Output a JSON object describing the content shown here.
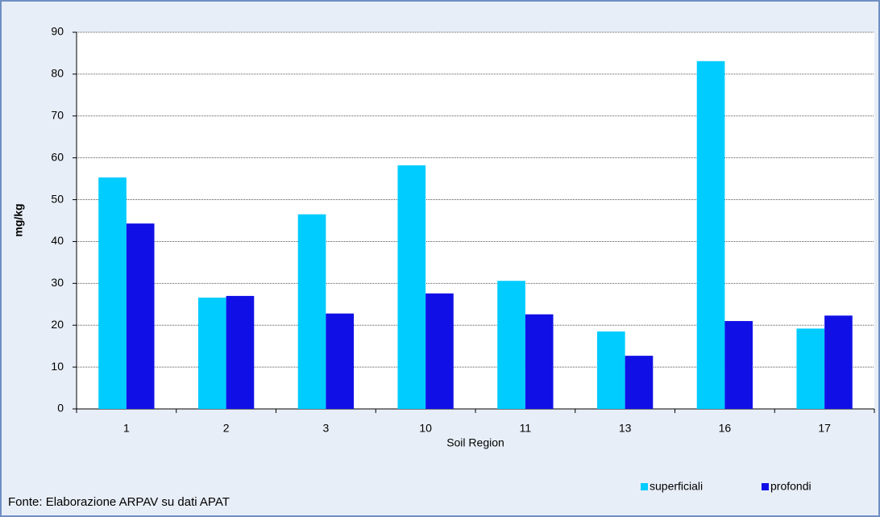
{
  "chart_data": {
    "type": "bar",
    "categories": [
      "1",
      "2",
      "3",
      "10",
      "11",
      "13",
      "16",
      "17"
    ],
    "series": [
      {
        "name": "superficiali",
        "color": "#00ccff",
        "values": [
          55.3,
          26.6,
          46.5,
          58.2,
          30.6,
          18.5,
          83.1,
          19.2
        ]
      },
      {
        "name": "profondi",
        "color": "#1010e6",
        "values": [
          44.3,
          27.0,
          22.8,
          27.6,
          22.6,
          12.7,
          21.0,
          22.3
        ]
      }
    ],
    "y_label": "mg/kg",
    "x_label": "Soil Region",
    "ylim": [
      0,
      90
    ],
    "yticks": [
      0,
      10,
      20,
      30,
      40,
      50,
      60,
      70,
      80,
      90
    ],
    "grid": true,
    "legend": "bottom-right",
    "source": "Fonte: Elaborazione ARPAV su dati APAT"
  }
}
